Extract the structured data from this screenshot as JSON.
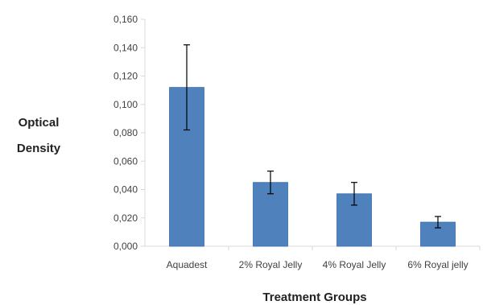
{
  "chart_data": {
    "type": "bar",
    "title": "",
    "xlabel": "Treatment Groups",
    "ylabel_lines": [
      "Optical",
      "Density"
    ],
    "categories": [
      "Aquadest",
      "2% Royal Jelly",
      "4% Royal Jelly",
      "6% Royal jelly"
    ],
    "values": [
      0.112,
      0.045,
      0.037,
      0.017
    ],
    "error": [
      0.03,
      0.008,
      0.008,
      0.004
    ],
    "ylim": [
      0,
      0.16
    ],
    "yticks": [
      "0,000",
      "0,020",
      "0,040",
      "0,060",
      "0,080",
      "0,100",
      "0,120",
      "0,140",
      "0,160"
    ],
    "ytick_values": [
      0,
      0.02,
      0.04,
      0.06,
      0.08,
      0.1,
      0.12,
      0.14,
      0.16
    ],
    "grid": false,
    "legend": "none",
    "colors": {
      "bar": "#4F81BD",
      "bar_edge": "#3A6EA5",
      "axis": "#D9D9D9",
      "error_bar": "#000000"
    }
  }
}
